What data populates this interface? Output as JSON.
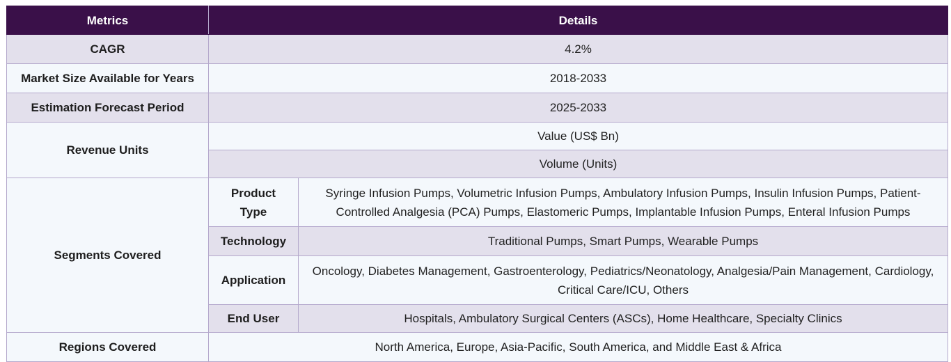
{
  "header": {
    "metrics_label": "Metrics",
    "details_label": "Details"
  },
  "rows": {
    "cagr": {
      "label": "CAGR",
      "value": "4.2%"
    },
    "market_size": {
      "label": "Market Size Available for Years",
      "value": "2018-2033"
    },
    "forecast": {
      "label": "Estimation Forecast Period",
      "value": "2025-2033"
    },
    "revenue_units": {
      "label": "Revenue Units",
      "values": [
        "Value (US$ Bn)",
        "Volume (Units)"
      ]
    },
    "segments": {
      "label": "Segments Covered",
      "items": [
        {
          "name": "Product Type",
          "value": "Syringe Infusion Pumps, Volumetric Infusion Pumps, Ambulatory Infusion Pumps, Insulin Infusion Pumps, Patient-Controlled Analgesia (PCA) Pumps, Elastomeric Pumps, Implantable Infusion Pumps, Enteral Infusion Pumps"
        },
        {
          "name": "Technology",
          "value": "Traditional Pumps, Smart Pumps, Wearable Pumps"
        },
        {
          "name": "Application",
          "value": "Oncology, Diabetes Management, Gastroenterology, Pediatrics/Neonatology, Analgesia/Pain Management, Cardiology, Critical Care/ICU, Others"
        },
        {
          "name": "End User",
          "value": "Hospitals, Ambulatory Surgical Centers (ASCs), Home Healthcare, Specialty Clinics"
        }
      ]
    },
    "regions": {
      "label": "Regions Covered",
      "value": "North America, Europe, Asia-Pacific, South America, and Middle East & Africa"
    }
  }
}
